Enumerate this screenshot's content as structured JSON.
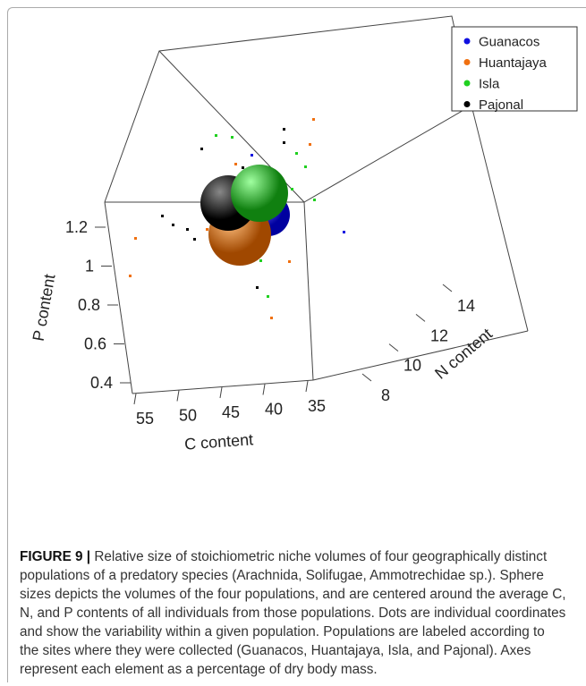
{
  "figure": {
    "legend": [
      {
        "name": "Guanacos",
        "color": "#1010e0"
      },
      {
        "name": "Huantajaya",
        "color": "#f07010"
      },
      {
        "name": "Isla",
        "color": "#20d020"
      },
      {
        "name": "Pajonal",
        "color": "#000000"
      }
    ],
    "axes": {
      "p": {
        "label": "P content",
        "ticks": [
          1.2,
          1,
          0.8,
          0.6,
          0.4
        ]
      },
      "c": {
        "label": "C content",
        "ticks": [
          55,
          50,
          45,
          40,
          35
        ]
      },
      "n": {
        "label": "N content",
        "ticks": [
          8,
          10,
          12,
          14
        ]
      }
    }
  },
  "caption": {
    "label": "FIGURE 9 |",
    "text": "Relative size of stoichiometric niche volumes of four geographically distinct populations of a predatory species (Arachnida, Solifugae, Ammotrechidae sp.). Sphere sizes depicts the volumes of the four populations, and are centered around the average C, N, and P contents of all individuals from those populations. Dots are individual coordinates and show the variability within a given population. Populations are labeled according to the sites where they were collected (Guanacos, Huantajaya, Isla, and Pajonal). Axes represent each element as a percentage of dry body mass."
  }
}
